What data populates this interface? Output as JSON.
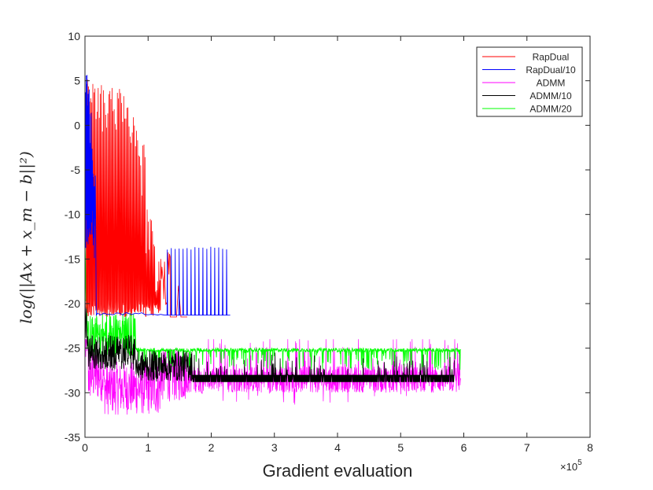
{
  "chart_data": {
    "type": "line",
    "title": "",
    "xlabel": "Gradient evaluation",
    "ylabel": "log(||Ax + x_m − b||²)",
    "x_multiplier": "×10",
    "x_multiplier_exp": "5",
    "xlim": [
      0,
      8
    ],
    "ylim": [
      -35,
      10
    ],
    "xticks": [
      "0",
      "1",
      "2",
      "3",
      "4",
      "5",
      "6",
      "7",
      "8"
    ],
    "yticks": [
      "10",
      "5",
      "0",
      "-5",
      "-10",
      "-15",
      "-20",
      "-25",
      "-30",
      "-35"
    ],
    "legend_position": "top-right",
    "series": [
      {
        "name": "RapDual",
        "color": "#ff0000",
        "x_max": 1.35,
        "final_level": -21.5,
        "peaks": [
          6.8,
          6.3,
          5.2,
          4.8,
          4.5,
          4.2,
          3.0,
          -2.0,
          -9.0,
          -13.0
        ],
        "peak_x_end": 1.2
      },
      {
        "name": "RapDual/10",
        "color": "#0000ff",
        "x_max": 2.3,
        "final_level": -21.3,
        "peaks": [
          6.0,
          4.5,
          1.5,
          -2.5,
          -5.5
        ],
        "spike_level": -14.0,
        "spike_x_start": 1.3
      },
      {
        "name": "ADMM",
        "color": "#ff00ff",
        "x_max": 5.95,
        "final_level": -28.5,
        "band": [
          -32.0,
          -24.0
        ]
      },
      {
        "name": "ADMM/10",
        "color": "#000000",
        "x_max": 5.85,
        "final_level": -28.5,
        "band": [
          -28.8,
          -27.8
        ]
      },
      {
        "name": "ADMM/20",
        "color": "#00ff00",
        "x_max": 5.95,
        "final_level": -25.2,
        "band": [
          -27.5,
          -25.0
        ]
      }
    ]
  }
}
